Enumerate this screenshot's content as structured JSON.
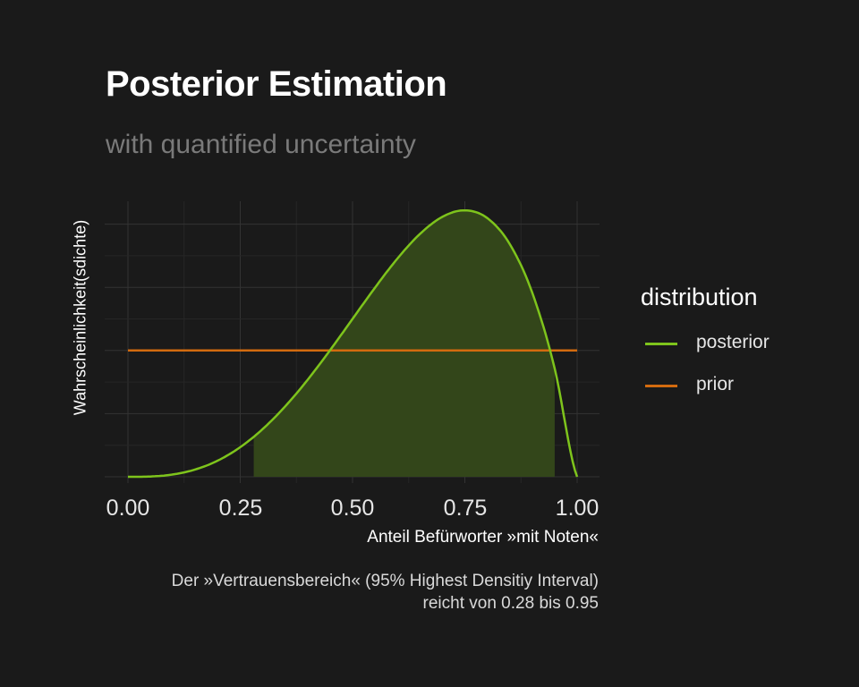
{
  "chart_data": {
    "type": "line",
    "title": "Posterior Estimation",
    "subtitle": "with quantified uncertainty",
    "xlabel": "Anteil Befürworter »mit Noten«",
    "ylabel": "Wahrscheinlichkeit(sdichte)",
    "xlim": [
      0,
      1
    ],
    "xticks": [
      "0.00",
      "0.25",
      "0.50",
      "0.75",
      "1.00"
    ],
    "ytick_labels_shown": false,
    "grid": true,
    "legend": {
      "title": "distribution",
      "placement": "right",
      "entries": [
        {
          "name": "posterior",
          "color": "#7ec41c"
        },
        {
          "name": "prior",
          "color": "#d36b0f"
        }
      ]
    },
    "series": [
      {
        "name": "posterior",
        "color": "#7ec41c",
        "x": [
          0.0,
          0.05,
          0.1,
          0.15,
          0.2,
          0.25,
          0.3,
          0.35,
          0.4,
          0.45,
          0.5,
          0.55,
          0.6,
          0.65,
          0.7,
          0.75,
          0.8,
          0.85,
          0.9,
          0.95,
          1.0
        ],
        "y": [
          0.0,
          0.0095,
          0.0729,
          0.2322,
          0.512,
          0.9375,
          1.512,
          2.2295,
          3.072,
          4.0095,
          5.0,
          5.9895,
          6.912,
          7.6895,
          8.232,
          8.4375,
          8.192,
          7.3695,
          5.832,
          3.4295,
          0.0
        ]
      },
      {
        "name": "prior",
        "color": "#d36b0f",
        "x": [
          0.0,
          1.0
        ],
        "y": [
          4.0,
          4.0
        ]
      }
    ],
    "shaded_interval": {
      "from": 0.28,
      "to": 0.95,
      "color": "#33461a"
    },
    "caption": {
      "line1": "Der »Vertrauensbereich« (95% Highest Densitiy Interval)",
      "line2": "reicht von  0.28  bis  0.95"
    }
  }
}
